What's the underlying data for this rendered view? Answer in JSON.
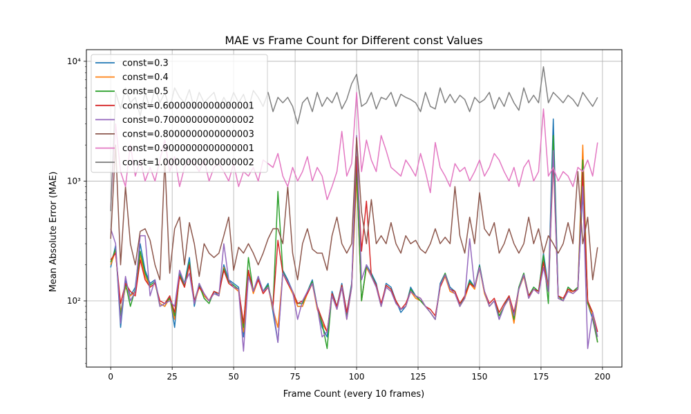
{
  "chart_data": {
    "type": "line",
    "title": "MAE vs Frame Count for Different const Values",
    "xlabel": "Frame Count (every 10 frames)",
    "ylabel": "Mean Absolute Error (MAE)",
    "xlim": [
      -9.9,
      207.9
    ],
    "ylim": [
      28,
      12500
    ],
    "yscale": "log",
    "grid": true,
    "legend_position": "upper-left",
    "x_ticks": [
      0,
      25,
      50,
      75,
      100,
      125,
      150,
      175,
      200
    ],
    "y_ticks": [
      100,
      1000,
      10000
    ],
    "y_tick_labels": [
      "10²",
      "10³",
      "10⁴"
    ],
    "x": [
      0,
      2,
      4,
      6,
      8,
      10,
      12,
      14,
      16,
      18,
      20,
      22,
      24,
      26,
      28,
      30,
      32,
      34,
      36,
      38,
      40,
      42,
      44,
      46,
      48,
      50,
      52,
      54,
      56,
      58,
      60,
      62,
      64,
      66,
      68,
      70,
      72,
      74,
      76,
      78,
      80,
      82,
      84,
      86,
      88,
      90,
      92,
      94,
      96,
      98,
      100,
      102,
      104,
      106,
      108,
      110,
      112,
      114,
      116,
      118,
      120,
      122,
      124,
      126,
      128,
      130,
      132,
      134,
      136,
      138,
      140,
      142,
      144,
      146,
      148,
      150,
      152,
      154,
      156,
      158,
      160,
      162,
      164,
      166,
      168,
      170,
      172,
      174,
      176,
      178,
      180,
      182,
      184,
      186,
      188,
      190,
      192,
      194,
      196,
      198
    ],
    "series": [
      {
        "name": "const=0.3",
        "color": "#1f77b4",
        "values": [
          190,
          290,
          60,
          150,
          110,
          130,
          300,
          180,
          140,
          150,
          95,
          90,
          110,
          60,
          170,
          140,
          230,
          90,
          140,
          110,
          100,
          120,
          110,
          200,
          150,
          140,
          130,
          50,
          180,
          120,
          160,
          120,
          140,
          80,
          45,
          180,
          150,
          120,
          90,
          90,
          120,
          150,
          90,
          60,
          50,
          120,
          90,
          140,
          80,
          140,
          1200,
          100,
          200,
          170,
          140,
          90,
          140,
          130,
          100,
          80,
          90,
          130,
          110,
          100,
          90,
          80,
          70,
          140,
          170,
          130,
          120,
          90,
          110,
          150,
          130,
          200,
          120,
          90,
          100,
          70,
          90,
          110,
          75,
          130,
          170,
          110,
          130,
          120,
          250,
          130,
          3300,
          110,
          100,
          130,
          120,
          130,
          800,
          95,
          70,
          45
        ]
      },
      {
        "name": "const=0.4",
        "color": "#ff7f0e",
        "values": [
          200,
          260,
          80,
          130,
          110,
          120,
          240,
          160,
          130,
          140,
          95,
          90,
          105,
          70,
          160,
          130,
          200,
          95,
          130,
          110,
          100,
          115,
          110,
          190,
          140,
          130,
          120,
          55,
          170,
          115,
          150,
          115,
          130,
          85,
          60,
          170,
          140,
          115,
          90,
          90,
          115,
          140,
          85,
          65,
          55,
          110,
          85,
          130,
          70,
          130,
          1100,
          100,
          190,
          160,
          130,
          90,
          130,
          120,
          100,
          85,
          90,
          120,
          105,
          100,
          90,
          80,
          70,
          130,
          160,
          120,
          115,
          90,
          105,
          140,
          125,
          190,
          115,
          90,
          100,
          75,
          90,
          105,
          65,
          125,
          160,
          105,
          125,
          115,
          220,
          125,
          2000,
          105,
          100,
          125,
          115,
          125,
          2000,
          95,
          75,
          45
        ]
      },
      {
        "name": "const=0.5",
        "color": "#2ca02c",
        "values": [
          210,
          270,
          75,
          140,
          90,
          125,
          260,
          170,
          135,
          145,
          90,
          95,
          105,
          75,
          165,
          135,
          210,
          100,
          135,
          105,
          95,
          120,
          115,
          185,
          145,
          135,
          125,
          60,
          230,
          120,
          155,
          120,
          135,
          90,
          820,
          175,
          145,
          120,
          95,
          95,
          120,
          145,
          90,
          65,
          40,
          115,
          90,
          135,
          75,
          135,
          1300,
          100,
          195,
          165,
          135,
          90,
          135,
          125,
          100,
          85,
          90,
          125,
          110,
          100,
          90,
          80,
          70,
          135,
          170,
          125,
          120,
          90,
          110,
          145,
          130,
          195,
          120,
          90,
          100,
          75,
          90,
          110,
          70,
          130,
          170,
          110,
          130,
          120,
          240,
          95,
          2400,
          110,
          100,
          130,
          120,
          130,
          1500,
          95,
          80,
          45
        ]
      },
      {
        "name": "const=0.6000000000000001",
        "color": "#d62728",
        "values": [
          220,
          250,
          95,
          140,
          120,
          110,
          220,
          150,
          130,
          140,
          100,
          95,
          110,
          80,
          160,
          130,
          200,
          100,
          130,
          115,
          100,
          120,
          115,
          180,
          140,
          130,
          125,
          65,
          180,
          120,
          150,
          115,
          130,
          90,
          320,
          170,
          140,
          120,
          95,
          100,
          115,
          140,
          90,
          70,
          55,
          115,
          90,
          135,
          80,
          130,
          1600,
          260,
          680,
          160,
          135,
          95,
          135,
          125,
          100,
          85,
          95,
          120,
          110,
          105,
          90,
          85,
          75,
          130,
          165,
          125,
          120,
          95,
          110,
          140,
          130,
          190,
          120,
          95,
          105,
          80,
          95,
          110,
          80,
          125,
          165,
          110,
          125,
          120,
          210,
          120,
          1500,
          110,
          105,
          125,
          120,
          125,
          1200,
          100,
          80,
          55
        ]
      },
      {
        "name": "const=0.7000000000000002",
        "color": "#9467bd",
        "values": [
          400,
          300,
          65,
          160,
          100,
          120,
          350,
          350,
          110,
          150,
          90,
          95,
          100,
          90,
          180,
          140,
          170,
          95,
          140,
          115,
          100,
          115,
          110,
          300,
          150,
          130,
          125,
          38,
          160,
          120,
          160,
          120,
          130,
          90,
          45,
          170,
          145,
          120,
          70,
          100,
          120,
          140,
          90,
          50,
          55,
          110,
          85,
          130,
          70,
          130,
          2400,
          150,
          200,
          160,
          130,
          90,
          130,
          120,
          95,
          85,
          90,
          120,
          110,
          105,
          90,
          80,
          70,
          135,
          165,
          125,
          115,
          90,
          105,
          330,
          130,
          190,
          120,
          90,
          100,
          70,
          90,
          105,
          75,
          125,
          165,
          105,
          125,
          115,
          190,
          120,
          1800,
          105,
          100,
          120,
          115,
          125,
          900,
          40,
          80,
          50
        ]
      },
      {
        "name": "const=0.8000000000000003",
        "color": "#8c564b",
        "values": [
          330,
          2000,
          200,
          900,
          300,
          200,
          380,
          400,
          320,
          200,
          150,
          1500,
          170,
          400,
          500,
          200,
          450,
          300,
          160,
          300,
          250,
          230,
          250,
          350,
          500,
          180,
          280,
          250,
          300,
          250,
          200,
          250,
          330,
          400,
          400,
          300,
          900,
          250,
          150,
          300,
          400,
          270,
          250,
          250,
          180,
          350,
          500,
          300,
          250,
          300,
          2300,
          550,
          300,
          700,
          300,
          350,
          300,
          450,
          300,
          250,
          350,
          300,
          320,
          270,
          250,
          300,
          400,
          300,
          340,
          300,
          900,
          350,
          250,
          500,
          300,
          800,
          400,
          350,
          450,
          250,
          300,
          400,
          300,
          250,
          300,
          500,
          300,
          400,
          250,
          350,
          300,
          250,
          300,
          450,
          300,
          1200,
          300,
          500,
          150,
          280
        ]
      },
      {
        "name": "const=0.9000000000000001",
        "color": "#e377c2",
        "values": [
          600,
          3000,
          1200,
          900,
          2000,
          1100,
          1500,
          1000,
          1300,
          1000,
          1500,
          2200,
          1200,
          1600,
          900,
          1300,
          1500,
          1400,
          1200,
          1500,
          1000,
          1300,
          1400,
          1200,
          1000,
          1400,
          900,
          1200,
          1100,
          1300,
          1000,
          1500,
          1400,
          1300,
          1700,
          1100,
          900,
          1300,
          1000,
          1200,
          1600,
          1000,
          1300,
          1100,
          700,
          900,
          1200,
          2600,
          1100,
          1400,
          5500,
          1200,
          2200,
          1500,
          1200,
          2400,
          1800,
          1300,
          1200,
          1100,
          1500,
          1300,
          1100,
          1700,
          1200,
          800,
          2100,
          1300,
          1100,
          900,
          1400,
          1200,
          1300,
          1000,
          1200,
          1500,
          1100,
          1300,
          1700,
          1500,
          1200,
          1000,
          1300,
          900,
          1300,
          1500,
          1000,
          1200,
          4000,
          1100,
          1300,
          1000,
          1200,
          1100,
          900,
          1300,
          1200,
          1500,
          1100,
          2100
        ]
      },
      {
        "name": "const=1.0000000000000002",
        "color": "#7f7f7f",
        "values": [
          560,
          5500,
          4000,
          6000,
          4500,
          5000,
          3500,
          5500,
          4000,
          6000,
          4500,
          5500,
          4000,
          6000,
          5000,
          4500,
          5800,
          4000,
          5500,
          4500,
          5000,
          5500,
          4000,
          5000,
          4200,
          5500,
          4500,
          5300,
          4000,
          5700,
          5000,
          4200,
          5500,
          3800,
          5000,
          4500,
          5000,
          4200,
          3000,
          4500,
          5000,
          3800,
          5500,
          4200,
          5000,
          4500,
          5500,
          4000,
          4800,
          6500,
          7800,
          4200,
          4500,
          5500,
          4000,
          5000,
          4800,
          5500,
          4200,
          5300,
          5000,
          4800,
          4500,
          3800,
          5500,
          4200,
          4000,
          6000,
          4500,
          5300,
          4500,
          5200,
          4800,
          3800,
          5000,
          4500,
          4800,
          5500,
          4000,
          5000,
          4200,
          5500,
          4500,
          3900,
          6000,
          4500,
          5200,
          4500,
          9000,
          4500,
          5500,
          5000,
          4500,
          5200,
          4800,
          4200,
          5500,
          4800,
          4200,
          5000
        ]
      }
    ]
  }
}
